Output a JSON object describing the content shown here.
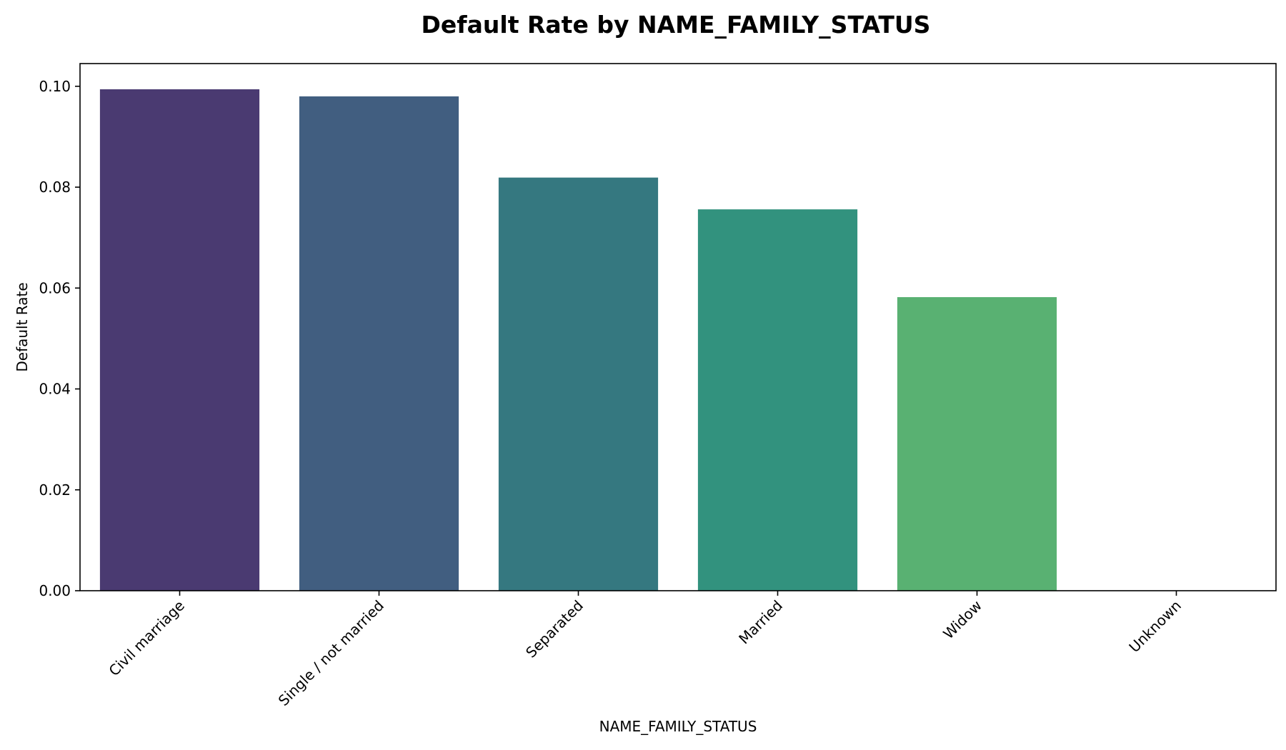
{
  "chart_data": {
    "type": "bar",
    "title": "Default Rate by NAME_FAMILY_STATUS",
    "xlabel": "NAME_FAMILY_STATUS",
    "ylabel": "Default Rate",
    "categories": [
      "Civil marriage",
      "Single / not married",
      "Separated",
      "Married",
      "Widow",
      "Unknown"
    ],
    "values": [
      0.0994,
      0.098,
      0.0819,
      0.0756,
      0.0582,
      0.0
    ],
    "colors": [
      "#4a3a71",
      "#415e80",
      "#357880",
      "#32927e",
      "#59b172",
      "#a5d95a"
    ],
    "ylim": [
      0,
      0.1045
    ],
    "yticks": [
      0.0,
      0.02,
      0.04,
      0.06,
      0.08,
      0.1
    ],
    "ytick_labels": [
      "0.00",
      "0.02",
      "0.04",
      "0.06",
      "0.08",
      "0.10"
    ],
    "grid": false,
    "legend": "none"
  }
}
